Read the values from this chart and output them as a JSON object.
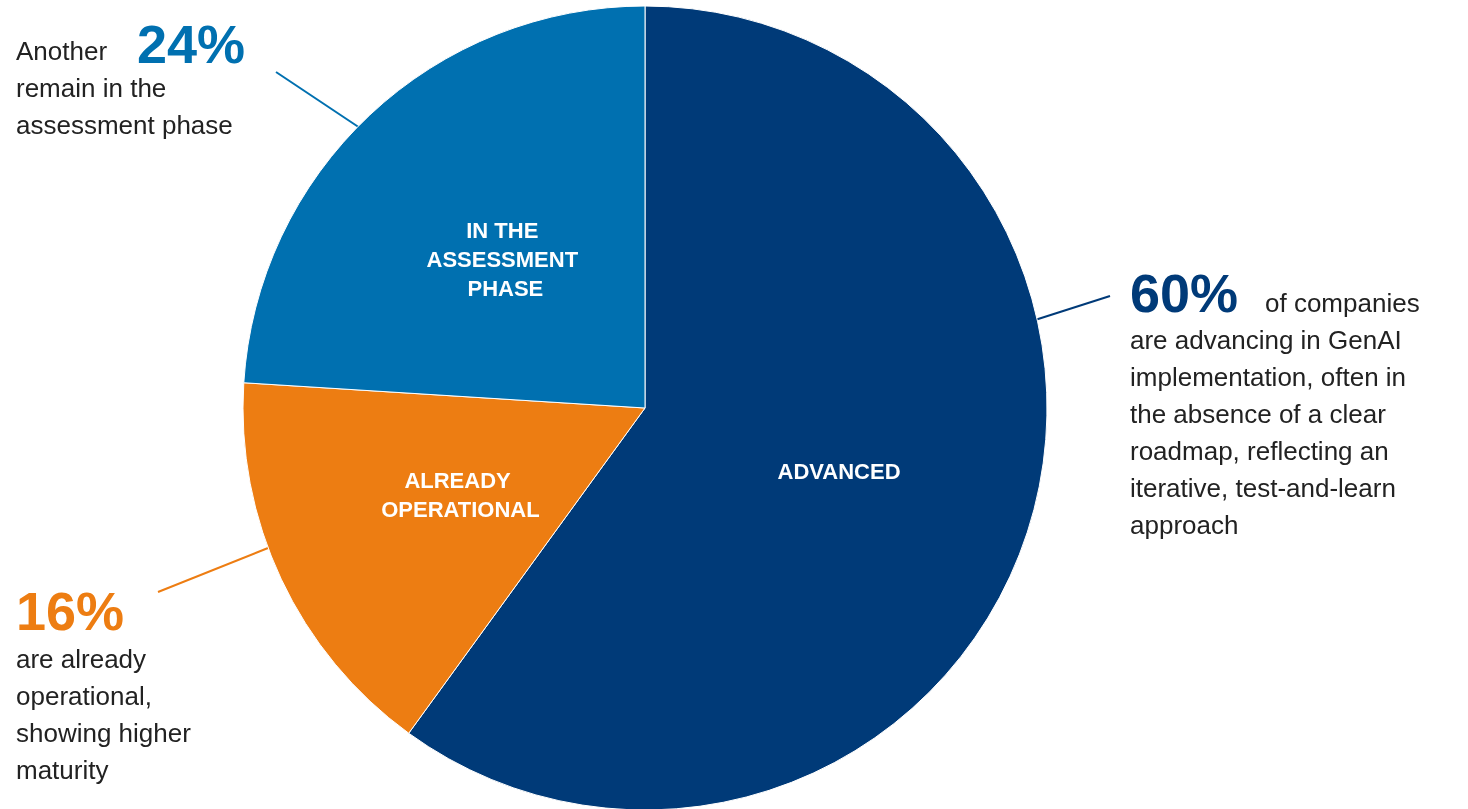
{
  "chart_data": {
    "type": "pie",
    "categories": [
      "ADVANCED",
      "ALREADY OPERATIONAL",
      "IN THE ASSESSMENT PHASE"
    ],
    "values": [
      60,
      16,
      24
    ],
    "colors": [
      "#003a78",
      "#ed7d12",
      "#0070b0"
    ],
    "annotations": [
      "Another",
      "24%",
      "remain in the assessment phase",
      "60%",
      "of companies are advancing in GenAI implementation, often in the absence of a clear roadmap, reflecting an iterative, test-and-learn approach",
      "16%",
      "are already operational, showing higher maturity"
    ]
  }
}
